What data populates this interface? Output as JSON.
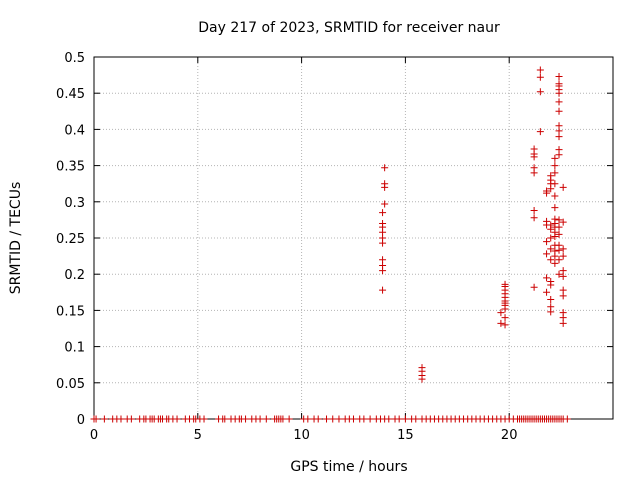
{
  "chart_data": {
    "type": "scatter",
    "title": "Day 217 of 2023, SRMTID for receiver naur",
    "xlabel": "GPS time / hours",
    "ylabel": "SRMTID / TECUs",
    "xlim": [
      0,
      25
    ],
    "ylim": [
      0,
      0.5
    ],
    "xticks": [
      0,
      5,
      10,
      15,
      20
    ],
    "xtick_labels": [
      "0",
      "5",
      "10",
      "15",
      "20"
    ],
    "yticks": [
      0,
      0.05,
      0.1,
      0.15,
      0.2,
      0.25,
      0.3,
      0.35,
      0.4,
      0.45,
      0.5
    ],
    "ytick_labels": [
      "0",
      "0.05",
      "0.1",
      "0.15",
      "0.2",
      "0.25",
      "0.3",
      "0.35",
      "0.4",
      "0.45",
      "0.5"
    ],
    "grid": true,
    "marker": "+",
    "color": "#cc0000",
    "series": [
      {
        "name": "naur",
        "points": [
          [
            13.9,
            0.178
          ],
          [
            13.9,
            0.205
          ],
          [
            13.9,
            0.212
          ],
          [
            13.9,
            0.22
          ],
          [
            13.9,
            0.243
          ],
          [
            13.9,
            0.25
          ],
          [
            13.9,
            0.258
          ],
          [
            13.9,
            0.265
          ],
          [
            13.9,
            0.27
          ],
          [
            13.9,
            0.285
          ],
          [
            14.0,
            0.297
          ],
          [
            14.0,
            0.32
          ],
          [
            14.0,
            0.325
          ],
          [
            14.0,
            0.347
          ],
          [
            15.8,
            0.055
          ],
          [
            15.8,
            0.06
          ],
          [
            15.8,
            0.066
          ],
          [
            15.8,
            0.071
          ],
          [
            19.6,
            0.132
          ],
          [
            19.6,
            0.147
          ],
          [
            19.8,
            0.13
          ],
          [
            19.8,
            0.14
          ],
          [
            19.8,
            0.152
          ],
          [
            19.8,
            0.157
          ],
          [
            19.8,
            0.16
          ],
          [
            19.8,
            0.163
          ],
          [
            19.8,
            0.168
          ],
          [
            19.8,
            0.173
          ],
          [
            19.8,
            0.178
          ],
          [
            19.8,
            0.183
          ],
          [
            19.8,
            0.186
          ],
          [
            21.2,
            0.182
          ],
          [
            21.2,
            0.278
          ],
          [
            21.2,
            0.288
          ],
          [
            21.2,
            0.34
          ],
          [
            21.2,
            0.347
          ],
          [
            21.2,
            0.362
          ],
          [
            21.2,
            0.366
          ],
          [
            21.2,
            0.373
          ],
          [
            21.5,
            0.397
          ],
          [
            21.5,
            0.452
          ],
          [
            21.5,
            0.472
          ],
          [
            21.5,
            0.482
          ],
          [
            21.8,
            0.175
          ],
          [
            21.8,
            0.195
          ],
          [
            21.8,
            0.228
          ],
          [
            21.8,
            0.245
          ],
          [
            21.8,
            0.268
          ],
          [
            21.8,
            0.273
          ],
          [
            21.8,
            0.312
          ],
          [
            21.8,
            0.315
          ],
          [
            22.0,
            0.148
          ],
          [
            22.0,
            0.155
          ],
          [
            22.0,
            0.165
          ],
          [
            22.0,
            0.185
          ],
          [
            22.0,
            0.19
          ],
          [
            22.0,
            0.22
          ],
          [
            22.0,
            0.235
          ],
          [
            22.0,
            0.25
          ],
          [
            22.0,
            0.262
          ],
          [
            22.0,
            0.268
          ],
          [
            22.0,
            0.318
          ],
          [
            22.0,
            0.325
          ],
          [
            22.0,
            0.33
          ],
          [
            22.0,
            0.336
          ],
          [
            22.2,
            0.215
          ],
          [
            22.2,
            0.225
          ],
          [
            22.2,
            0.232
          ],
          [
            22.2,
            0.24
          ],
          [
            22.2,
            0.252
          ],
          [
            22.2,
            0.258
          ],
          [
            22.2,
            0.265
          ],
          [
            22.2,
            0.27
          ],
          [
            22.2,
            0.276
          ],
          [
            22.2,
            0.292
          ],
          [
            22.2,
            0.308
          ],
          [
            22.2,
            0.325
          ],
          [
            22.2,
            0.34
          ],
          [
            22.2,
            0.35
          ],
          [
            22.2,
            0.36
          ],
          [
            22.4,
            0.2
          ],
          [
            22.4,
            0.22
          ],
          [
            22.4,
            0.233
          ],
          [
            22.4,
            0.24
          ],
          [
            22.4,
            0.255
          ],
          [
            22.4,
            0.265
          ],
          [
            22.4,
            0.275
          ],
          [
            22.4,
            0.365
          ],
          [
            22.4,
            0.372
          ],
          [
            22.4,
            0.39
          ],
          [
            22.4,
            0.398
          ],
          [
            22.4,
            0.405
          ],
          [
            22.4,
            0.425
          ],
          [
            22.4,
            0.438
          ],
          [
            22.4,
            0.45
          ],
          [
            22.4,
            0.455
          ],
          [
            22.4,
            0.46
          ],
          [
            22.4,
            0.463
          ],
          [
            22.4,
            0.473
          ],
          [
            22.6,
            0.132
          ],
          [
            22.6,
            0.14
          ],
          [
            22.6,
            0.147
          ],
          [
            22.6,
            0.17
          ],
          [
            22.6,
            0.178
          ],
          [
            22.6,
            0.197
          ],
          [
            22.6,
            0.205
          ],
          [
            22.6,
            0.225
          ],
          [
            22.6,
            0.235
          ],
          [
            22.6,
            0.272
          ],
          [
            22.6,
            0.32
          ],
          [
            0.0,
            0
          ],
          [
            0.1,
            0
          ],
          [
            0.5,
            0
          ],
          [
            0.9,
            0
          ],
          [
            1.1,
            0
          ],
          [
            1.3,
            0
          ],
          [
            1.6,
            0
          ],
          [
            1.8,
            0
          ],
          [
            2.2,
            0
          ],
          [
            2.4,
            0
          ],
          [
            2.5,
            0
          ],
          [
            2.7,
            0
          ],
          [
            2.8,
            0
          ],
          [
            2.9,
            0
          ],
          [
            3.1,
            0
          ],
          [
            3.2,
            0
          ],
          [
            3.3,
            0
          ],
          [
            3.5,
            0
          ],
          [
            3.6,
            0
          ],
          [
            3.8,
            0
          ],
          [
            4.0,
            0
          ],
          [
            4.4,
            0
          ],
          [
            4.6,
            0
          ],
          [
            4.8,
            0
          ],
          [
            4.9,
            0
          ],
          [
            5.1,
            0
          ],
          [
            5.3,
            0
          ],
          [
            6.0,
            0
          ],
          [
            6.2,
            0
          ],
          [
            6.3,
            0
          ],
          [
            6.6,
            0
          ],
          [
            6.8,
            0
          ],
          [
            7.0,
            0
          ],
          [
            7.1,
            0
          ],
          [
            7.3,
            0
          ],
          [
            7.6,
            0
          ],
          [
            7.8,
            0
          ],
          [
            8.0,
            0
          ],
          [
            8.3,
            0
          ],
          [
            8.7,
            0
          ],
          [
            8.8,
            0
          ],
          [
            8.9,
            0
          ],
          [
            9.0,
            0
          ],
          [
            9.1,
            0
          ],
          [
            9.4,
            0
          ],
          [
            10.1,
            0
          ],
          [
            10.3,
            0
          ],
          [
            10.6,
            0
          ],
          [
            10.8,
            0
          ],
          [
            11.2,
            0
          ],
          [
            11.5,
            0
          ],
          [
            11.8,
            0
          ],
          [
            12.1,
            0
          ],
          [
            12.3,
            0
          ],
          [
            12.5,
            0
          ],
          [
            12.8,
            0
          ],
          [
            13.0,
            0
          ],
          [
            13.3,
            0
          ],
          [
            13.6,
            0
          ],
          [
            13.8,
            0
          ],
          [
            14.0,
            0
          ],
          [
            14.2,
            0
          ],
          [
            14.5,
            0
          ],
          [
            14.7,
            0
          ],
          [
            15.0,
            0
          ],
          [
            15.3,
            0
          ],
          [
            15.5,
            0
          ],
          [
            15.8,
            0
          ],
          [
            16.0,
            0
          ],
          [
            16.2,
            0
          ],
          [
            16.4,
            0
          ],
          [
            16.6,
            0
          ],
          [
            16.8,
            0
          ],
          [
            17.0,
            0
          ],
          [
            17.2,
            0
          ],
          [
            17.4,
            0
          ],
          [
            17.6,
            0
          ],
          [
            17.8,
            0
          ],
          [
            18.0,
            0
          ],
          [
            18.2,
            0
          ],
          [
            18.4,
            0
          ],
          [
            18.6,
            0
          ],
          [
            18.8,
            0
          ],
          [
            19.0,
            0
          ],
          [
            19.2,
            0
          ],
          [
            19.4,
            0
          ],
          [
            19.6,
            0
          ],
          [
            19.8,
            0
          ],
          [
            20.0,
            0
          ],
          [
            20.2,
            0
          ],
          [
            20.4,
            0
          ],
          [
            20.5,
            0
          ],
          [
            20.6,
            0
          ],
          [
            20.7,
            0
          ],
          [
            20.8,
            0
          ],
          [
            20.9,
            0
          ],
          [
            21.0,
            0
          ],
          [
            21.1,
            0
          ],
          [
            21.2,
            0
          ],
          [
            21.3,
            0
          ],
          [
            21.4,
            0
          ],
          [
            21.5,
            0
          ],
          [
            21.6,
            0
          ],
          [
            21.7,
            0
          ],
          [
            21.8,
            0
          ],
          [
            21.9,
            0
          ],
          [
            22.0,
            0
          ],
          [
            22.1,
            0
          ],
          [
            22.2,
            0
          ],
          [
            22.3,
            0
          ],
          [
            22.4,
            0
          ],
          [
            22.5,
            0
          ],
          [
            22.6,
            0
          ],
          [
            22.8,
            0
          ]
        ]
      }
    ]
  }
}
